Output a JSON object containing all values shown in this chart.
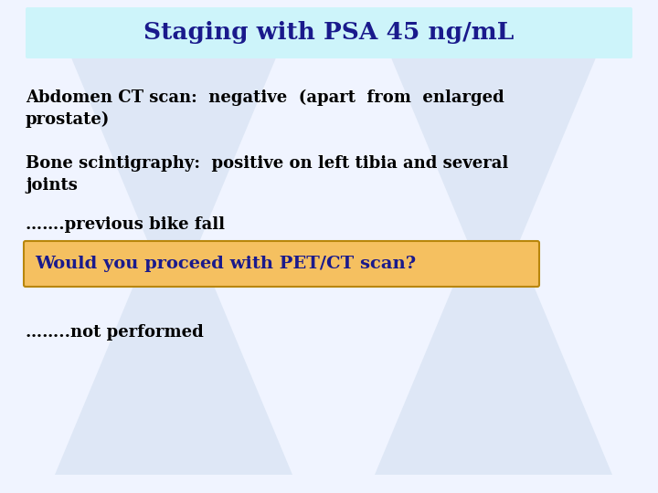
{
  "title": "Staging with PSA 45 ng/mL",
  "title_bg_color": "#cdf4fa",
  "title_text_color": "#1a1a8c",
  "slide_bg_color": "#f0f4ff",
  "body_text_color": "#000000",
  "highlight_box_color": "#f5c060",
  "highlight_text_color": "#1a1a8c",
  "highlight_text": "Would you proceed with PET/CT scan?",
  "watermark_color": "#dce6f5",
  "line1_l1": "Abdomen CT scan:  negative  (apart  from  enlarged",
  "line1_l2": "prostate)",
  "line2_l1": "Bone scintigraphy:  positive on left tibia and several",
  "line2_l2": "joints",
  "line3": "…….previous bike fall",
  "line5": "……..not performed"
}
